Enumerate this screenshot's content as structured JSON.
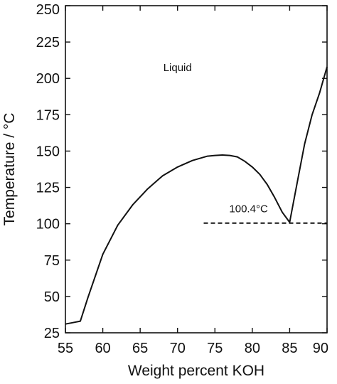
{
  "chart_data": {
    "type": "line",
    "title": "",
    "xlabel": "Weight percent KOH",
    "ylabel": "Temperature / °C",
    "xlim": [
      55,
      90
    ],
    "ylim": [
      25,
      250
    ],
    "xticks": [
      55,
      60,
      65,
      70,
      75,
      80,
      85,
      90
    ],
    "yticks": [
      25,
      50,
      75,
      100,
      125,
      150,
      175,
      200,
      225,
      250
    ],
    "grid": false,
    "legend": "none",
    "series": [
      {
        "style": "solid",
        "color": "#111111",
        "x": [
          55,
          56,
          57,
          58,
          60,
          62,
          64,
          66,
          68,
          70,
          72,
          74,
          75,
          76,
          77,
          78,
          79,
          80,
          81,
          82,
          83,
          84,
          85,
          86,
          87,
          88,
          89,
          90
        ],
        "y": [
          31,
          32,
          33,
          49,
          79,
          99,
          113,
          124,
          133,
          139,
          143.5,
          146.5,
          147,
          147.3,
          147,
          146,
          143,
          139,
          134,
          127,
          118,
          108,
          101,
          128,
          155,
          175,
          190,
          208
        ]
      },
      {
        "style": "dashed",
        "color": "#111111",
        "x": [
          73.5,
          90
        ],
        "y": [
          100.4,
          100.4
        ]
      }
    ],
    "annotations": [
      {
        "text": "Liquid",
        "x": 70,
        "y": 205
      },
      {
        "text": "100.4°C",
        "x": 79.5,
        "y": 108
      }
    ]
  }
}
